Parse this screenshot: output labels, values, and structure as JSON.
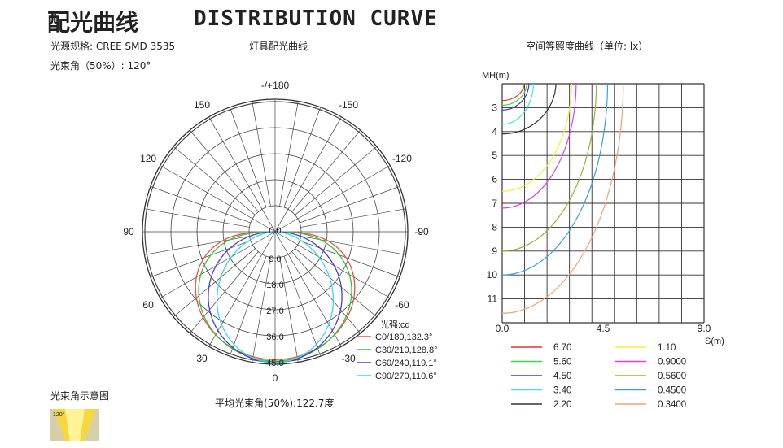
{
  "title_cn": "配光曲线",
  "title_en": "DISTRIBUTION CURVE",
  "spec_label": "光源规格: CREE SMD 3535",
  "beam_label": "光束角（50%）: 120°",
  "polar_title": "灯具配光曲线",
  "iso_title": "空间等照度曲线（单位: lx）",
  "beam_diagram_title": "光束角示意图",
  "beam_diagram_angle": "120°",
  "avg_beam_label": "平均光束角(50%):122.7度",
  "chart_data": [
    {
      "type": "polar",
      "name": "灯具配光曲线",
      "angle_labels": [
        "-/+180",
        "150",
        "120",
        "90",
        "60",
        "30",
        "0",
        "-30",
        "-60",
        "-90",
        "-120",
        "-150"
      ],
      "radial_labels": [
        "9.0",
        "18.0",
        "27.0",
        "36.0",
        "45.0"
      ],
      "radial_origin_label": "0.0",
      "rmax": 45,
      "legend_title": "光强:cd",
      "series": [
        {
          "name": "C0/180,132.3°",
          "color": "#e8504a",
          "beam_angle": 132.3,
          "peak": 44
        },
        {
          "name": "C30/210,128.8°",
          "color": "#33c43a",
          "beam_angle": 128.8,
          "peak": 44.5
        },
        {
          "name": "C60/240,119.1°",
          "color": "#4a3fd1",
          "beam_angle": 119.1,
          "peak": 45
        },
        {
          "name": "C90/270,110.6°",
          "color": "#39d8e6",
          "beam_angle": 110.6,
          "peak": 45
        }
      ]
    },
    {
      "type": "contour",
      "name": "空间等照度曲线",
      "ylabel": "MH(m)",
      "xlabel": "S(m)",
      "x_ticks": [
        "0.0",
        "4.5",
        "9.0"
      ],
      "y_ticks": [
        "3",
        "4",
        "5",
        "6",
        "7",
        "8",
        "9",
        "10",
        "11"
      ],
      "xlim": [
        0,
        9
      ],
      "ylim": [
        2,
        12
      ],
      "series": [
        {
          "name": "6.70",
          "color": "#e8313a",
          "depth": 2.7,
          "radius": 1.0
        },
        {
          "name": "5.60",
          "color": "#3cd84a",
          "depth": 2.9,
          "radius": 1.1
        },
        {
          "name": "4.50",
          "color": "#3e3bd4",
          "depth": 3.1,
          "radius": 1.2
        },
        {
          "name": "3.40",
          "color": "#3fe1ee",
          "depth": 3.7,
          "radius": 1.4
        },
        {
          "name": "2.20",
          "color": "#333333",
          "depth": 4.1,
          "radius": 2.4
        },
        {
          "name": "1.10",
          "color": "#f3f03c",
          "depth": 6.5,
          "radius": 3.1
        },
        {
          "name": "0.9000",
          "color": "#e03ee0",
          "depth": 7.2,
          "radius": 3.3
        },
        {
          "name": "0.5600",
          "color": "#9ab03a",
          "depth": 9.0,
          "radius": 4.2
        },
        {
          "name": "0.4500",
          "color": "#3c9ee0",
          "depth": 10.0,
          "radius": 4.7
        },
        {
          "name": "0.3400",
          "color": "#f2a07a",
          "depth": 11.6,
          "radius": 5.4
        }
      ]
    }
  ]
}
